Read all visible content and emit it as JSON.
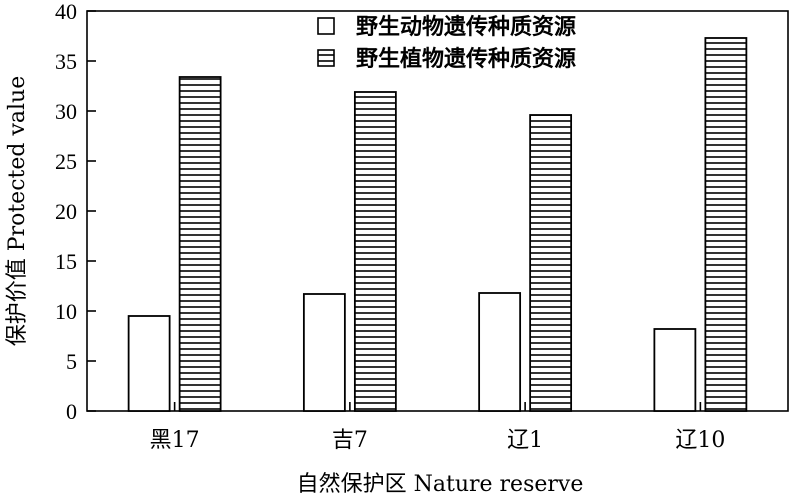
{
  "chart_data": {
    "type": "bar",
    "categories": [
      "黑17",
      "吉7",
      "辽1",
      "辽10"
    ],
    "series": [
      {
        "name": "野生动物遗传种质资源",
        "values": [
          9.5,
          11.7,
          11.8,
          8.2
        ],
        "pattern": "empty"
      },
      {
        "name": "野生植物遗传种质资源",
        "values": [
          33.4,
          31.9,
          29.6,
          37.3
        ],
        "pattern": "horizontal-hatch"
      }
    ],
    "xlabel": "自然保护区 Nature reserve",
    "ylabel": "保护价值 Protected value",
    "ylim": [
      0,
      40
    ],
    "yticks": [
      0,
      5,
      10,
      15,
      20,
      25,
      30,
      35,
      40
    ],
    "grid": false,
    "legend": "top-center",
    "colors": {
      "stroke": "#000000",
      "fill": "#ffffff"
    }
  }
}
